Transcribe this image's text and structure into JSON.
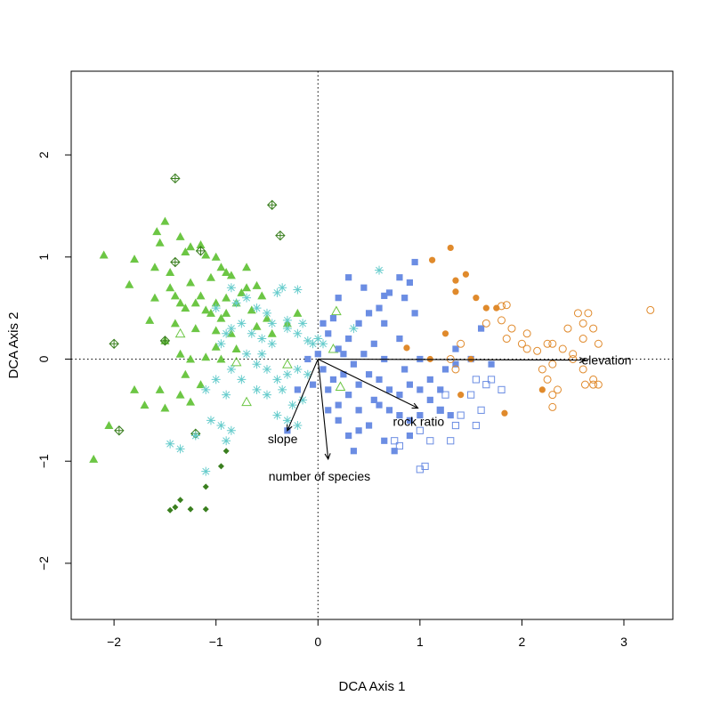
{
  "chart_data": {
    "type": "scatter",
    "title": "",
    "xlabel": "DCA Axis 1",
    "ylabel": "DCA Axis 2",
    "xlim": [
      -2.42,
      3.48
    ],
    "ylim": [
      -2.55,
      2.82
    ],
    "xticks": [
      -2,
      -1,
      0,
      1,
      2,
      3
    ],
    "yticks": [
      -2,
      -1,
      0,
      1,
      2
    ],
    "xtick_labels": [
      "−2",
      "−1",
      "0",
      "1",
      "2",
      "3"
    ],
    "ytick_labels": [
      "−2",
      "−1",
      "0",
      "1",
      "2"
    ],
    "reference_lines": {
      "x0": true,
      "y0": true,
      "style": "dotted"
    },
    "grid": false,
    "legend": "none",
    "series": [
      {
        "marker": "filled-triangle",
        "color": "#6cc644",
        "points": [
          [
            -2.1,
            1.02
          ],
          [
            -1.8,
            0.98
          ],
          [
            -1.85,
            0.73
          ],
          [
            -1.6,
            0.9
          ],
          [
            -1.58,
            1.25
          ],
          [
            -1.55,
            1.14
          ],
          [
            -1.35,
            1.2
          ],
          [
            -1.3,
            1.05
          ],
          [
            -1.25,
            1.1
          ],
          [
            -1.15,
            1.12
          ],
          [
            -1.1,
            1.02
          ],
          [
            -1.0,
            1.0
          ],
          [
            -0.95,
            0.9
          ],
          [
            -0.9,
            0.85
          ],
          [
            -0.85,
            0.82
          ],
          [
            -1.45,
            0.7
          ],
          [
            -1.4,
            0.62
          ],
          [
            -1.35,
            0.55
          ],
          [
            -1.3,
            0.5
          ],
          [
            -1.2,
            0.55
          ],
          [
            -1.15,
            0.62
          ],
          [
            -1.1,
            0.48
          ],
          [
            -1.05,
            0.45
          ],
          [
            -1.0,
            0.55
          ],
          [
            -0.95,
            0.4
          ],
          [
            -0.9,
            0.45
          ],
          [
            -0.8,
            0.55
          ],
          [
            -0.75,
            0.65
          ],
          [
            -0.7,
            0.7
          ],
          [
            -0.6,
            0.72
          ],
          [
            -0.55,
            0.62
          ],
          [
            -0.65,
            0.48
          ],
          [
            -0.5,
            0.4
          ],
          [
            -1.4,
            0.35
          ],
          [
            -1.2,
            0.3
          ],
          [
            -1.0,
            0.28
          ],
          [
            -0.85,
            0.25
          ],
          [
            -0.6,
            0.32
          ],
          [
            -0.45,
            0.25
          ],
          [
            -1.65,
            0.38
          ],
          [
            -1.5,
            0.18
          ],
          [
            -1.35,
            0.05
          ],
          [
            -1.25,
            0.0
          ],
          [
            -1.1,
            0.02
          ],
          [
            -0.95,
            0.0
          ],
          [
            -1.8,
            -0.3
          ],
          [
            -1.7,
            -0.45
          ],
          [
            -1.55,
            -0.3
          ],
          [
            -1.5,
            -0.48
          ],
          [
            -1.35,
            -0.35
          ],
          [
            -1.25,
            -0.42
          ],
          [
            -1.15,
            -0.25
          ],
          [
            -2.05,
            -0.65
          ],
          [
            -2.2,
            -0.98
          ],
          [
            -1.0,
            0.12
          ],
          [
            -0.8,
            0.1
          ],
          [
            -1.3,
            -0.15
          ],
          [
            -0.2,
            0.45
          ],
          [
            -0.3,
            0.35
          ],
          [
            -1.5,
            1.35
          ],
          [
            -1.45,
            0.85
          ],
          [
            -1.25,
            0.75
          ],
          [
            -1.05,
            0.8
          ],
          [
            -0.7,
            0.9
          ],
          [
            -1.6,
            0.6
          ],
          [
            -0.9,
            0.6
          ]
        ]
      },
      {
        "marker": "open-triangle",
        "color": "#6cc644",
        "points": [
          [
            -1.35,
            0.25
          ],
          [
            -0.8,
            -0.03
          ],
          [
            -0.7,
            -0.42
          ],
          [
            0.15,
            0.1
          ],
          [
            0.18,
            0.47
          ],
          [
            0.22,
            -0.27
          ],
          [
            -0.3,
            -0.05
          ]
        ]
      },
      {
        "marker": "crossed-diamond",
        "color": "#3a7f1f",
        "points": [
          [
            -1.4,
            1.77
          ],
          [
            -0.45,
            1.51
          ],
          [
            -0.37,
            1.21
          ],
          [
            -1.4,
            0.95
          ],
          [
            -1.15,
            1.06
          ],
          [
            -2.0,
            0.15
          ],
          [
            -1.5,
            0.18
          ],
          [
            -1.95,
            -0.7
          ],
          [
            -1.2,
            -0.73
          ]
        ]
      },
      {
        "marker": "filled-diamond",
        "color": "#3a7f1f",
        "points": [
          [
            -0.9,
            -0.9
          ],
          [
            -0.95,
            -1.05
          ],
          [
            -1.1,
            -1.25
          ],
          [
            -1.35,
            -1.38
          ],
          [
            -1.4,
            -1.45
          ],
          [
            -1.45,
            -1.48
          ],
          [
            -1.25,
            -1.47
          ],
          [
            -1.1,
            -1.47
          ]
        ]
      },
      {
        "marker": "asterisk",
        "color": "#66cccc",
        "points": [
          [
            -1.0,
            0.5
          ],
          [
            -0.85,
            0.7
          ],
          [
            -0.8,
            0.55
          ],
          [
            -0.7,
            0.6
          ],
          [
            -0.6,
            0.5
          ],
          [
            -0.5,
            0.45
          ],
          [
            -0.4,
            0.65
          ],
          [
            -0.35,
            0.7
          ],
          [
            -0.2,
            0.68
          ],
          [
            -0.3,
            0.3
          ],
          [
            -0.2,
            0.25
          ],
          [
            -0.15,
            0.35
          ],
          [
            -0.1,
            0.18
          ],
          [
            -0.05,
            0.15
          ],
          [
            0.0,
            0.2
          ],
          [
            0.05,
            0.15
          ],
          [
            -0.45,
            0.15
          ],
          [
            -0.55,
            0.2
          ],
          [
            -0.65,
            0.25
          ],
          [
            -0.75,
            0.35
          ],
          [
            -0.85,
            0.3
          ],
          [
            -0.9,
            0.25
          ],
          [
            -0.95,
            0.15
          ],
          [
            -0.7,
            0.05
          ],
          [
            -0.6,
            -0.05
          ],
          [
            -0.5,
            -0.1
          ],
          [
            -0.4,
            -0.2
          ],
          [
            -0.3,
            -0.15
          ],
          [
            -0.2,
            -0.1
          ],
          [
            -0.1,
            -0.15
          ],
          [
            -0.35,
            -0.3
          ],
          [
            -0.5,
            -0.35
          ],
          [
            -0.6,
            -0.3
          ],
          [
            -0.75,
            -0.2
          ],
          [
            -0.85,
            -0.1
          ],
          [
            -1.0,
            -0.2
          ],
          [
            -1.1,
            -0.3
          ],
          [
            -0.9,
            -0.35
          ],
          [
            -0.4,
            -0.55
          ],
          [
            -0.3,
            -0.6
          ],
          [
            -0.2,
            -0.65
          ],
          [
            -0.15,
            -0.4
          ],
          [
            -1.05,
            -0.6
          ],
          [
            -0.95,
            -0.65
          ],
          [
            -0.85,
            -0.7
          ],
          [
            -0.9,
            -0.8
          ],
          [
            -1.2,
            -0.75
          ],
          [
            -1.35,
            -0.88
          ],
          [
            -1.45,
            -0.83
          ],
          [
            -1.1,
            -1.1
          ],
          [
            -0.3,
            0.38
          ],
          [
            -0.45,
            0.35
          ],
          [
            0.6,
            0.87
          ],
          [
            0.35,
            0.3
          ],
          [
            -0.55,
            0.05
          ],
          [
            -0.25,
            -0.45
          ]
        ]
      },
      {
        "marker": "filled-square",
        "color": "#6b8de3",
        "points": [
          [
            0.05,
            0.35
          ],
          [
            0.1,
            0.25
          ],
          [
            0.2,
            0.1
          ],
          [
            0.3,
            0.2
          ],
          [
            0.4,
            0.35
          ],
          [
            0.5,
            0.45
          ],
          [
            0.6,
            0.5
          ],
          [
            0.7,
            0.65
          ],
          [
            0.8,
            0.8
          ],
          [
            0.9,
            0.75
          ],
          [
            0.95,
            0.95
          ],
          [
            0.85,
            0.6
          ],
          [
            0.65,
            0.35
          ],
          [
            0.55,
            0.15
          ],
          [
            0.45,
            0.05
          ],
          [
            0.35,
            -0.05
          ],
          [
            0.25,
            -0.15
          ],
          [
            0.15,
            -0.2
          ],
          [
            0.05,
            -0.1
          ],
          [
            0.1,
            -0.3
          ],
          [
            0.2,
            -0.45
          ],
          [
            0.3,
            -0.35
          ],
          [
            0.4,
            -0.25
          ],
          [
            0.5,
            -0.15
          ],
          [
            0.6,
            -0.2
          ],
          [
            0.7,
            -0.3
          ],
          [
            0.8,
            -0.35
          ],
          [
            0.9,
            -0.25
          ],
          [
            1.0,
            -0.3
          ],
          [
            1.1,
            -0.4
          ],
          [
            1.2,
            -0.5
          ],
          [
            1.3,
            -0.55
          ],
          [
            1.0,
            -0.55
          ],
          [
            0.9,
            -0.6
          ],
          [
            0.8,
            -0.55
          ],
          [
            0.7,
            -0.5
          ],
          [
            0.6,
            -0.45
          ],
          [
            0.5,
            -0.65
          ],
          [
            0.4,
            -0.7
          ],
          [
            0.3,
            -0.75
          ],
          [
            0.65,
            -0.8
          ],
          [
            0.75,
            -0.9
          ],
          [
            0.9,
            -0.75
          ],
          [
            1.1,
            -0.2
          ],
          [
            1.25,
            -0.1
          ],
          [
            1.35,
            -0.05
          ],
          [
            1.5,
            0.0
          ],
          [
            1.7,
            -0.05
          ],
          [
            1.35,
            0.1
          ],
          [
            0.3,
            0.8
          ],
          [
            0.45,
            0.7
          ],
          [
            0.65,
            0.62
          ],
          [
            0.95,
            0.45
          ],
          [
            0.2,
            0.6
          ],
          [
            0.15,
            0.4
          ],
          [
            0.0,
            0.05
          ],
          [
            -0.1,
            0.0
          ],
          [
            -0.2,
            -0.3
          ],
          [
            -0.3,
            -0.7
          ],
          [
            0.8,
            0.2
          ],
          [
            1.0,
            0.0
          ],
          [
            0.55,
            -0.4
          ],
          [
            0.4,
            -0.5
          ],
          [
            0.2,
            -0.6
          ],
          [
            0.1,
            -0.5
          ],
          [
            0.35,
            -0.9
          ],
          [
            1.2,
            -0.3
          ],
          [
            0.25,
            0.05
          ],
          [
            -0.05,
            -0.25
          ],
          [
            0.65,
            0.0
          ],
          [
            1.6,
            0.3
          ],
          [
            0.85,
            -0.1
          ]
        ]
      },
      {
        "marker": "open-square",
        "color": "#6b8de3",
        "points": [
          [
            1.25,
            -0.35
          ],
          [
            1.2,
            -0.5
          ],
          [
            1.35,
            -0.65
          ],
          [
            1.55,
            -0.2
          ],
          [
            1.65,
            -0.25
          ],
          [
            1.8,
            -0.3
          ],
          [
            1.5,
            -0.35
          ],
          [
            1.0,
            -0.7
          ],
          [
            1.1,
            -0.8
          ],
          [
            1.3,
            -0.8
          ],
          [
            1.0,
            -1.08
          ],
          [
            1.05,
            -1.05
          ],
          [
            0.75,
            -0.8
          ],
          [
            0.8,
            -0.85
          ],
          [
            1.55,
            -0.65
          ],
          [
            1.6,
            -0.5
          ],
          [
            1.4,
            -0.55
          ],
          [
            1.7,
            -0.2
          ]
        ]
      },
      {
        "marker": "filled-circle",
        "color": "#e08a2c",
        "points": [
          [
            1.3,
            1.09
          ],
          [
            1.12,
            0.97
          ],
          [
            1.45,
            0.83
          ],
          [
            1.35,
            0.77
          ],
          [
            1.35,
            0.66
          ],
          [
            1.55,
            0.6
          ],
          [
            1.65,
            0.5
          ],
          [
            1.75,
            0.5
          ],
          [
            1.25,
            0.25
          ],
          [
            1.5,
            0.0
          ],
          [
            1.4,
            -0.35
          ],
          [
            1.83,
            -0.53
          ],
          [
            2.2,
            -0.3
          ],
          [
            1.1,
            0.0
          ],
          [
            0.87,
            0.11
          ]
        ]
      },
      {
        "marker": "open-circle",
        "color": "#e08a2c",
        "points": [
          [
            1.8,
            0.52
          ],
          [
            1.85,
            0.53
          ],
          [
            1.8,
            0.38
          ],
          [
            1.9,
            0.3
          ],
          [
            1.85,
            0.2
          ],
          [
            2.0,
            0.15
          ],
          [
            2.05,
            0.1
          ],
          [
            2.15,
            0.08
          ],
          [
            2.25,
            0.15
          ],
          [
            2.3,
            0.15
          ],
          [
            2.4,
            0.1
          ],
          [
            2.5,
            0.0
          ],
          [
            2.6,
            0.2
          ],
          [
            2.7,
            0.3
          ],
          [
            2.75,
            0.15
          ],
          [
            2.6,
            0.35
          ],
          [
            2.55,
            0.45
          ],
          [
            2.5,
            0.05
          ],
          [
            2.3,
            -0.05
          ],
          [
            2.25,
            -0.2
          ],
          [
            2.3,
            -0.35
          ],
          [
            2.35,
            -0.3
          ],
          [
            2.7,
            -0.2
          ],
          [
            2.7,
            -0.25
          ],
          [
            2.3,
            -0.47
          ],
          [
            2.2,
            -0.1
          ],
          [
            2.6,
            -0.1
          ],
          [
            2.45,
            0.3
          ],
          [
            3.26,
            0.48
          ],
          [
            1.65,
            0.35
          ],
          [
            1.4,
            0.15
          ],
          [
            2.65,
            0.45
          ],
          [
            2.62,
            -0.25
          ],
          [
            2.75,
            -0.25
          ],
          [
            1.3,
            0.0
          ],
          [
            1.35,
            -0.1
          ],
          [
            2.05,
            0.25
          ]
        ]
      }
    ],
    "vectors": [
      {
        "label": "elevation",
        "x": 2.62,
        "y": -0.01
      },
      {
        "label": "rock ratio",
        "x": 0.98,
        "y": -0.48
      },
      {
        "label": "slope",
        "x": -0.3,
        "y": -0.7
      },
      {
        "label": "number of species",
        "x": 0.1,
        "y": -0.98
      }
    ],
    "vector_label_offsets_note": ""
  },
  "labels": {
    "xlabel": "DCA Axis 1",
    "ylabel": "DCA Axis 2"
  }
}
